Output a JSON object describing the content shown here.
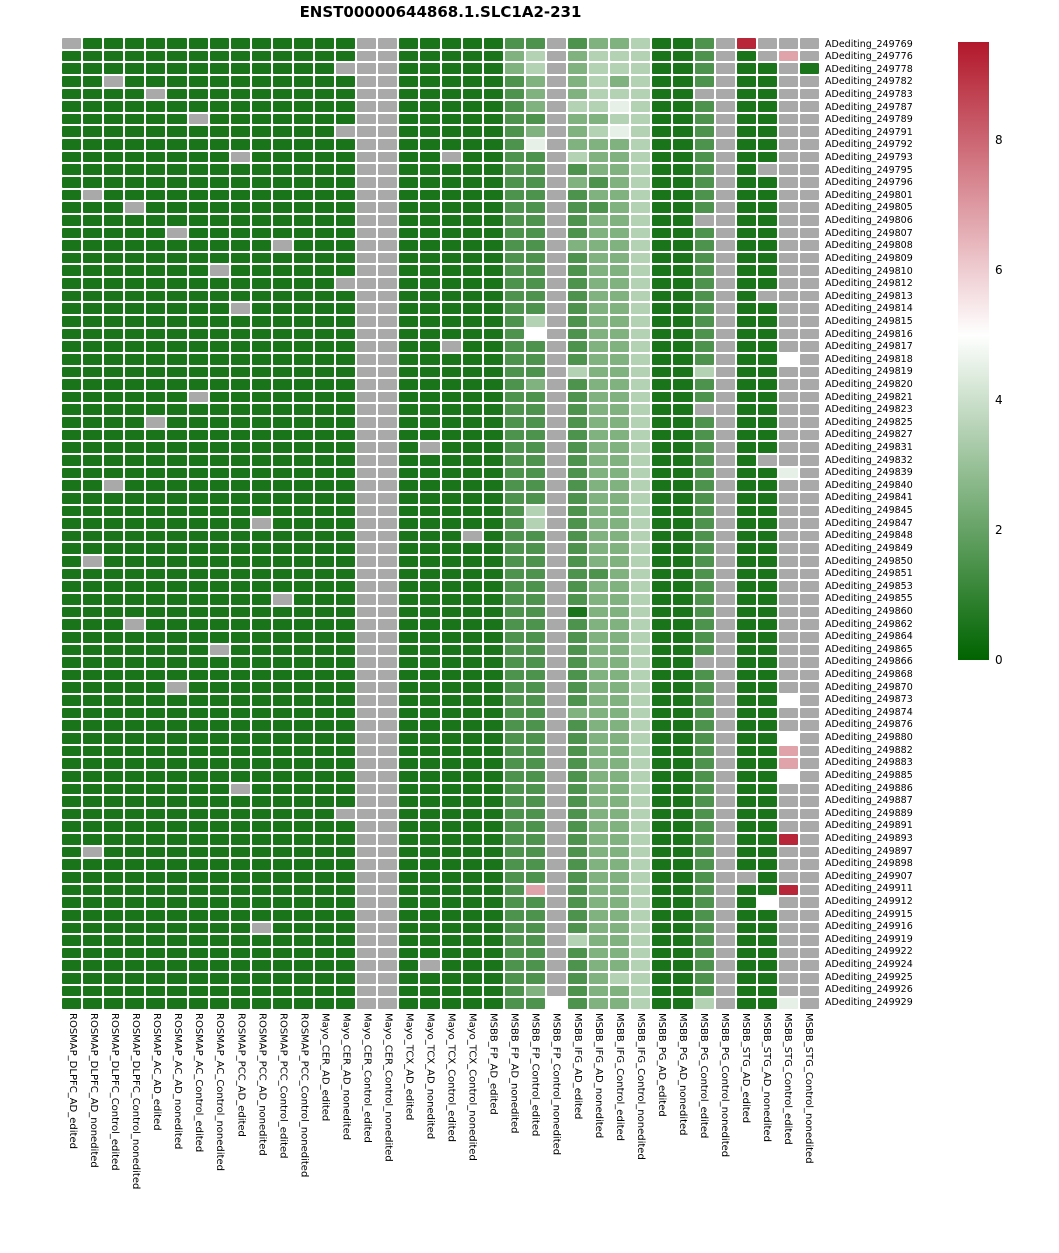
{
  "title": "ENST00000644868.1.SLC1A2-231",
  "chart_data": {
    "type": "heatmap",
    "title": "ENST00000644868.1.SLC1A2-231",
    "legend_position": "right",
    "columns": [
      "ROSMAP_DLPFC_AD_edited",
      "ROSMAP_DLPFC_AD_nonedited",
      "ROSMAP_DLPFC_Control_edited",
      "ROSMAP_DLPFC_Control_nonedited",
      "ROSMAP_AC_AD_edited",
      "ROSMAP_AC_AD_nonedited",
      "ROSMAP_AC_Control_edited",
      "ROSMAP_AC_Control_nonedited",
      "ROSMAP_PCC_AD_edited",
      "ROSMAP_PCC_AD_nonedited",
      "ROSMAP_PCC_Control_edited",
      "ROSMAP_PCC_Control_nonedited",
      "Mayo_CER_AD_edited",
      "Mayo_CER_AD_nonedited",
      "Mayo_CER_Control_edited",
      "Mayo_CER_Control_nonedited",
      "Mayo_TCX_AD_edited",
      "Mayo_TCX_AD_nonedited",
      "Mayo_TCX_Control_edited",
      "Mayo_TCX_Control_nonedited",
      "MSBB_FP_AD_edited",
      "MSBB_FP_AD_nonedited",
      "MSBB_FP_Control_edited",
      "MSBB_FP_Control_nonedited",
      "MSBB_IFG_AD_edited",
      "MSBB_IFG_AD_nonedited",
      "MSBB_IFG_Control_edited",
      "MSBB_IFG_Control_nonedited",
      "MSBB_PG_AD_edited",
      "MSBB_PG_AD_nonedited",
      "MSBB_PG_Control_edited",
      "MSBB_PG_Control_nonedited",
      "MSBB_STG_AD_edited",
      "MSBB_STG_AD_nonedited",
      "MSBB_STG_Control_edited",
      "MSBB_STG_Control_nonedited"
    ],
    "rows": [
      "ADediting_249769",
      "ADediting_249776",
      "ADediting_249778",
      "ADediting_249782",
      "ADediting_249783",
      "ADediting_249787",
      "ADediting_249789",
      "ADediting_249791",
      "ADediting_249792",
      "ADediting_249793",
      "ADediting_249795",
      "ADediting_249796",
      "ADediting_249801",
      "ADediting_249805",
      "ADediting_249806",
      "ADediting_249807",
      "ADediting_249808",
      "ADediting_249809",
      "ADediting_249810",
      "ADediting_249812",
      "ADediting_249813",
      "ADediting_249814",
      "ADediting_249815",
      "ADediting_249816",
      "ADediting_249817",
      "ADediting_249818",
      "ADediting_249819",
      "ADediting_249820",
      "ADediting_249821",
      "ADediting_249823",
      "ADediting_249825",
      "ADediting_249827",
      "ADediting_249831",
      "ADediting_249832",
      "ADediting_249839",
      "ADediting_249840",
      "ADediting_249841",
      "ADediting_249845",
      "ADediting_249847",
      "ADediting_249848",
      "ADediting_249849",
      "ADediting_249850",
      "ADediting_249851",
      "ADediting_249853",
      "ADediting_249855",
      "ADediting_249860",
      "ADediting_249862",
      "ADediting_249864",
      "ADediting_249865",
      "ADediting_249866",
      "ADediting_249868",
      "ADediting_249870",
      "ADediting_249873",
      "ADediting_249874",
      "ADediting_249876",
      "ADediting_249880",
      "ADediting_249882",
      "ADediting_249883",
      "ADediting_249885",
      "ADediting_249886",
      "ADediting_249887",
      "ADediting_249889",
      "ADediting_249891",
      "ADediting_249893",
      "ADediting_249897",
      "ADediting_249898",
      "ADediting_249907",
      "ADediting_249911",
      "ADediting_249912",
      "ADediting_249915",
      "ADediting_249916",
      "ADediting_249919",
      "ADediting_249922",
      "ADediting_249924",
      "ADediting_249925",
      "ADediting_249926",
      "ADediting_249929"
    ],
    "value_codes": {
      "a": 0.5,
      "b": 1.5,
      "c": 2.5,
      "d": 3.5,
      "e": 4.5,
      "w": 5.0,
      "p": 6.8,
      "q": 7.5,
      "r": 9.2,
      "N": null
    },
    "grid": [
      "NaaaaaaaaaaaaaNNaaaaabbNbccdaabNrNNN",
      "aaaaaaaaaaaaaaNNaaaaacdNcdddaabNaNpN",
      "aaaaaaaaaaaaaNNNaaaaacdNcdddaabNaaNa",
      "aaNaaaaaaaaaaaNNaaaaabcNcdcdaabNaaNN",
      "aaaaNaaaaaaaaaNNaaaaabcNcdddaaNNaaNN",
      "aaaaaaaaaaaaaaNNaaaaabcNddedaabNaaNN",
      "aaaaaaNaaaaaaaNNaaaaabbNccddaabNaaNN",
      "aaaaaaaaaaaaaNNNaaaaabcNcdedaabNaaNN",
      "aaaaaaaaaaaaaaNNaaaaabeNcccdaabNaaNN",
      "aaaaaaaaNaaaaaNNaaNaabbNdccdaabNaaNN",
      "aaaaaaaaaaaaaaNNaaaaabbNbccdaabNaNNN",
      "aaaaaaaaaaaaaaNNaaaaabbNcbcdaabNaaNN",
      "aNaaaaaaaaaaaaNNaaaaabbNbccdaabNaaNN",
      "aaaNaaaaaaaaaaNNaaaaabbNbbcdaabNaaNN",
      "aaaaaaaaaaaaaaNNaaaaabbNbccdaaNNaaNN",
      "aaaaaNaaaaaaaaNNaaaaabbNbccdaabNaaNN",
      "aaaaaaaaaaNaaaNNaaaaabbNcccdaabNaaNN",
      "aaaaaaaaaaaaaaNNaaaaabbNbccdaabNaaNN",
      "aaaaaaaNaaaaaaNNaaaaabbNbccdaabNaaNN",
      "aaaaaaaaaaaaaNNNaaaaabbNbccdaabNaaNN",
      "aaaaaaaaaaaaaaNNaaaaabbNbccdaabNaNNN",
      "aaaaaaaaNaaaaaNNaaaaabbNbccdaabNaaNN",
      "aaaaaaaaaaaaaaNNaaaaabdNbccdaabNaaNN",
      "aaaaaaaaaaaaaaNNaaaaabwNbccdaabNaaNN",
      "aaaaaaaaaaaaaaNNaaNaabbNbccdaabNaaNN",
      "aaaaaaaaaaaaaaNNaaaaabbNbccdaabNaawN",
      "aaaaaaaaaaaaaaNNaaaaabbNdccdaadNaaNN",
      "aaaaaaaaaaaaaaNNaaaaabcNbccdaabNaaNN",
      "aaaaaaNaaaaaaaNNaaaaabbNbccdaabNaaNN",
      "aaaaaaaaaaaaaaNNaaaaabbNbccdaaNNaaNN",
      "aaaaNaaaaaaaaaNNaaaaabbNbccdaabNaaNN",
      "aaaaaaaaaaaaaaNNaaaaabbNbccdaabNaaNN",
      "aaaaaaaaaaaaaaNNaNaaabbNbccdaabNaaNN",
      "aaaaaaaaaaaaaaNNaaaaabbNbccdaabNaNNN",
      "aaaaaaaaaaaaaaNNaaaaabbNbccdaabNaaeN",
      "aaNaaaaaaaaaaaNNaaaaabbNbccdaabNaaNN",
      "aaaaaaaaaaaaaaNNaaaaabbNbccdaabNaaNN",
      "aaaaaaaaaaaaaaNNaaaaabdNbccdaabNaaNN",
      "aaaaaaaaaNaaaaNNaaaaabdNbccdaabNaaNN",
      "aaaaaaaaaaaaaaNNaaaNabbNbccdaabNaaNN",
      "aaaaaaaaaaaaaaNNaaaaabbNbccdaabNaaNN",
      "aNaaaaaaaaaaaaNNaaaaabbNbccdaabNaaNN",
      "aaaaaaaaaaaaaaNNaaaaabbNbbcdaabNaaNN",
      "aaaaaaaaaaaaaaNNaaaaabbNbccdaabNaaNN",
      "aaaaaaaaaaNaaaNNaaaaabbNbccdaabNaaNN",
      "aaaaaaaaaaaaaaNNaaaaabbNaccdaabNaaNN",
      "aaaNaaaaaaaaaaNNaaaaabbNbccdaabNaaNN",
      "aaaaaaaaaaaaaaNNaaaaabbNbccdaabNaaNN",
      "aaaaaaaNaaaaaaNNaaaaabbNbccdaabNaaNN",
      "aaaaaaaaaaaaaaNNaaaaabbNbccdaaNNaaNN",
      "aaaaaaaaaaaaaaNNaaaaabbNbccdaabNaaNN",
      "aaaaaNaaaaaaaaNNaaaaabbNbccdaabNaaNN",
      "aaaaaaaaaaaaaaNNaaaaabbNbccdaabNaawN",
      "aaaaaaaaaaaaaaNNaaaaabbNcccdaabNaaNN",
      "aaaaaaaaaaaaaaNNaaaaabbNbccdaabNaaNN",
      "aaaaaaaaaaaaaaNNaaaaabbNbccdaabNaawN",
      "aaaaaaaaaaaaaaNNaaaaabbNbccdaabNaapN",
      "aaaaaaaaaaaaaaNNaaaaabbNbccdaabNaapN",
      "aaaaaaaaaaaaaaNNaaaaabbNbccdaabNaawN",
      "aaaaaaaaNaaaaaNNaaaaabbNbccdaabNaaNN",
      "aaaaaaaaaaaaaaNNaaaaabbNbccdaabNaaNN",
      "aaaaaaaaaaaaaNNNaaaaabbNbccdaabNaaNN",
      "aaaaaaaaaaaaaaNNaaaaabbNbccdaabNaaNN",
      "aaaaaaaaaaaaaaNNaaaaabbNbccdaabNaarN",
      "aNaaaaaaaaaaaaNNaaaaabbNbccdaabNaaNN",
      "aaaaaaaaaaaaaaNNaaaaabbNbccdaabNaaNN",
      "aaaaaaaaaaaaaaNNaaaaabbNbccdaabNNaNN",
      "aaaaaaaaaaaaaaNNaaaaabpNbccdaabNaarN",
      "aaaaaaaaaaaaaaNNaaaaabbNbccdaabNawNN",
      "aaaaaaaaaaaaaaNNaaaaabbNbccdaabNaaNN",
      "aaaaaaaaaNaaaaNNaaaaabbNbccdaabNaaNN",
      "aaaaaaaaaaaaaaNNaaaaabbNdccdaabNaaNN",
      "aaaaaaaaaaaaaaNNaaaaabbNbccdaabNaaNN",
      "aaaaaaaaaaaaaaNNaNaaabbNbccdaabNaaNN",
      "aaaaaaaaaaaaaaNNaaaaabbNbcddaabNaaNN",
      "aaaaaaaaaaaaaaNNaaaaabcNbccdaabNaaNN",
      "aaaaaaaaaaaaaaNNaaaaabbwbccdaadNaaeN"
    ],
    "colorscale": {
      "min": 0,
      "max": 9.5,
      "midpoint": 5,
      "ticks": [
        0,
        2,
        4,
        6,
        8
      ],
      "low": "#006400",
      "mid": "#ffffff",
      "high": "#b2182b",
      "na_color": "#a9a9a9"
    }
  }
}
